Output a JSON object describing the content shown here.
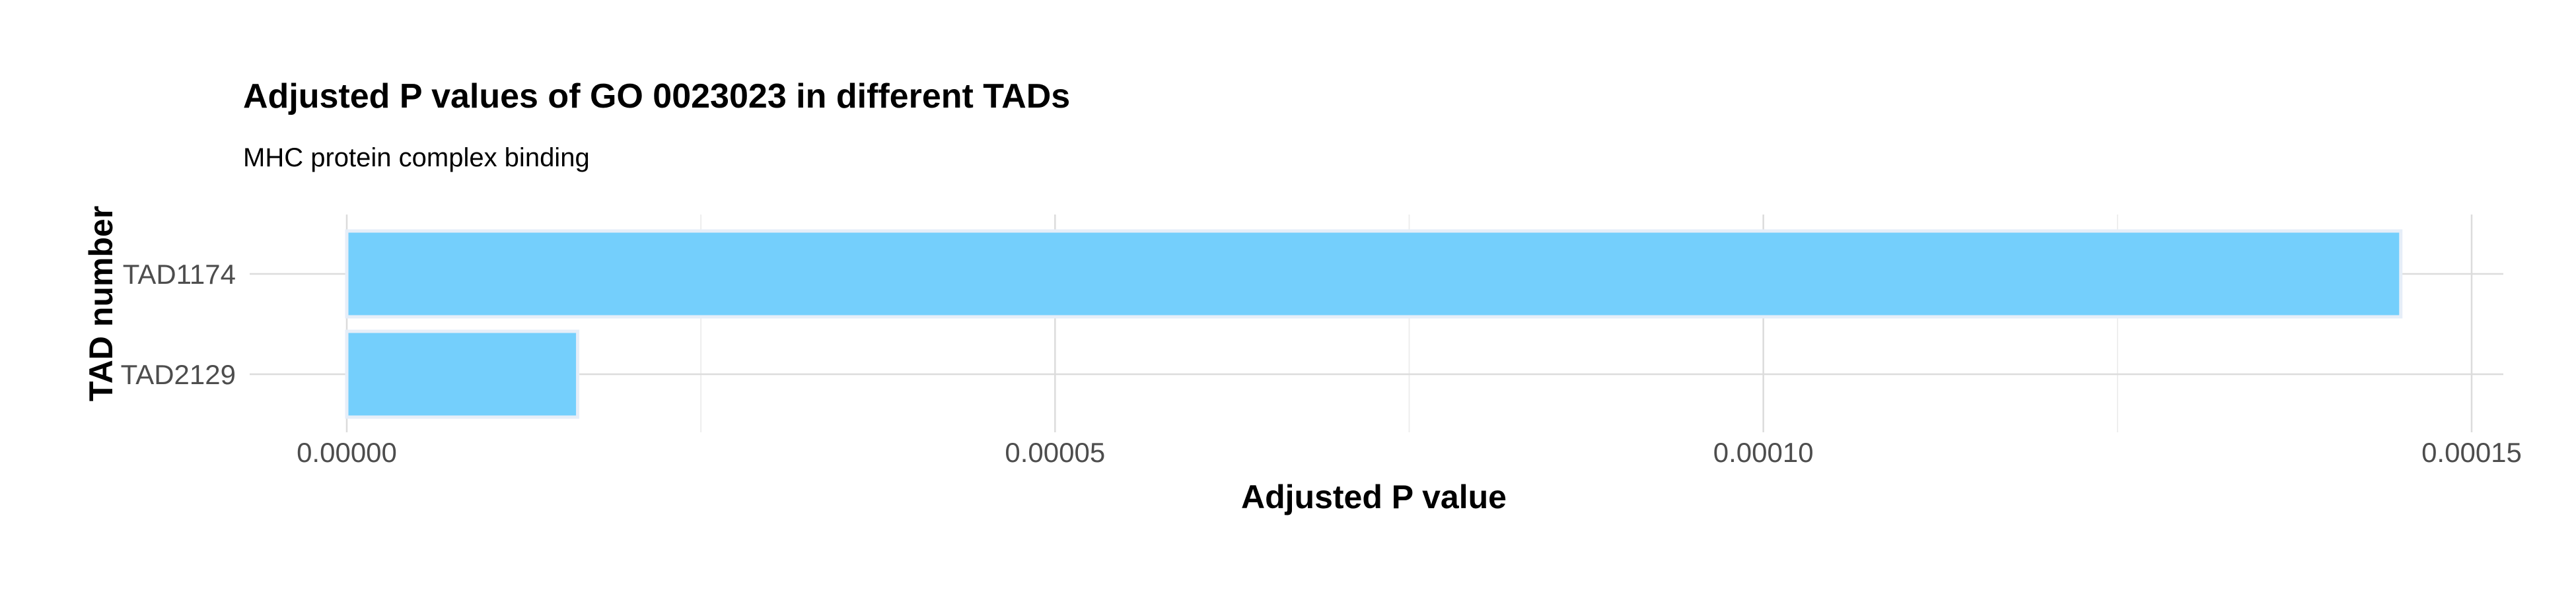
{
  "chart_data": {
    "type": "bar",
    "orientation": "horizontal",
    "title": "Adjusted P values of GO 0023023 in different TADs",
    "subtitle": "MHC protein complex binding",
    "xlabel": "Adjusted P value",
    "ylabel": "TAD number",
    "categories": [
      "TAD1174",
      "TAD2129"
    ],
    "values": [
      0.000145,
      1.63e-05
    ],
    "xlim": [
      0,
      0.00015
    ],
    "xticks": [
      0,
      5e-05,
      0.0001,
      0.00015
    ],
    "xtick_labels": [
      "0.00000",
      "0.00005",
      "0.00010",
      "0.00015"
    ],
    "grid": true,
    "legend": "none",
    "bar_color": "#74cffc"
  }
}
